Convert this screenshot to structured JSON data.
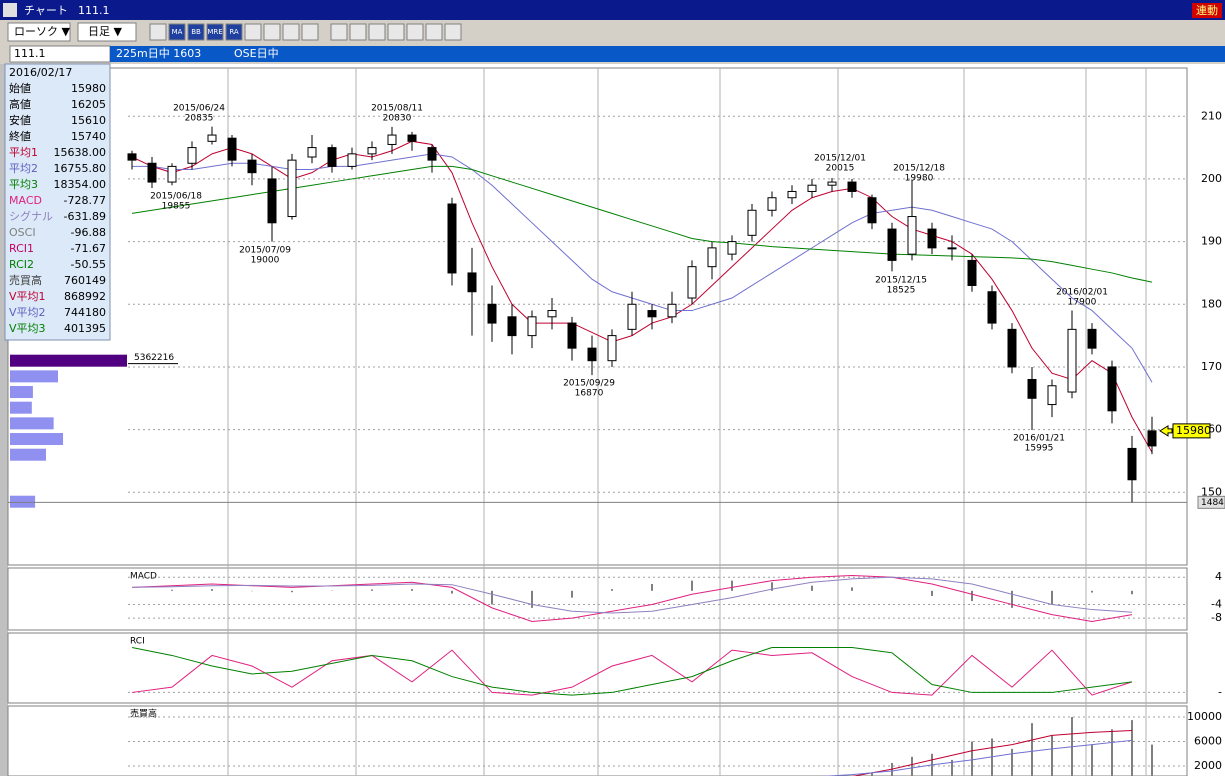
{
  "window": {
    "title": "チャート",
    "code": "111.1",
    "sync": "連動"
  },
  "toolbar": {
    "chart_type": "ローソク ▼",
    "period": "日足 ▼",
    "icons": [
      "MA",
      "BB",
      "MRE",
      "RA"
    ]
  },
  "tabs": [
    "111.1",
    "225m日中 1603",
    "OSE日中"
  ],
  "info": {
    "date": "2016/02/17",
    "rows": [
      {
        "label": "始値",
        "value": "15980",
        "color": "#000000"
      },
      {
        "label": "高値",
        "value": "16205",
        "color": "#000000"
      },
      {
        "label": "安値",
        "value": "15610",
        "color": "#000000"
      },
      {
        "label": "終値",
        "value": "15740",
        "color": "#000000"
      },
      {
        "label": "平均1",
        "value": "15638.00",
        "color": "#c00030"
      },
      {
        "label": "平均2",
        "value": "16755.80",
        "color": "#6060c0"
      },
      {
        "label": "平均3",
        "value": "18354.00",
        "color": "#008000"
      },
      {
        "label": "MACD",
        "value": "-728.77",
        "color": "#e0207f"
      },
      {
        "label": "シグナル",
        "value": "-631.89",
        "color": "#9080c0"
      },
      {
        "label": "OSCI",
        "value": "-96.88",
        "color": "#808080"
      },
      {
        "label": "RCI1",
        "value": "-71.67",
        "color": "#c00060"
      },
      {
        "label": "RCI2",
        "value": "-50.55",
        "color": "#008000"
      },
      {
        "label": "売買高",
        "value": "760149",
        "color": "#404040"
      },
      {
        "label": "V平均1",
        "value": "868992",
        "color": "#c00030"
      },
      {
        "label": "V平均2",
        "value": "744180",
        "color": "#6060c0"
      },
      {
        "label": "V平均3",
        "value": "401395",
        "color": "#008000"
      }
    ]
  },
  "chart_data": [
    {
      "type": "candlestick",
      "up_color": "#ffffff",
      "down_color": "#000000",
      "candles": [
        [
          20400,
          20450,
          20150,
          20300
        ],
        [
          20250,
          20350,
          19855,
          19950
        ],
        [
          19950,
          20250,
          19900,
          20200
        ],
        [
          20250,
          20600,
          20150,
          20500
        ],
        [
          20600,
          20835,
          20550,
          20700
        ],
        [
          20650,
          20700,
          20200,
          20300
        ],
        [
          20300,
          20400,
          19900,
          20100
        ],
        [
          20000,
          20200,
          19000,
          19300
        ],
        [
          19400,
          20400,
          19350,
          20300
        ],
        [
          20350,
          20700,
          20250,
          20500
        ],
        [
          20500,
          20550,
          20100,
          20200
        ],
        [
          20200,
          20500,
          20150,
          20400
        ],
        [
          20400,
          20600,
          20300,
          20500
        ],
        [
          20550,
          20830,
          20400,
          20700
        ],
        [
          20700,
          20750,
          20450,
          20600
        ],
        [
          20500,
          20550,
          20100,
          20300
        ],
        [
          19600,
          19700,
          18300,
          18500
        ],
        [
          18500,
          18900,
          17500,
          18200
        ],
        [
          18000,
          18300,
          17400,
          17700
        ],
        [
          17800,
          18000,
          17200,
          17500
        ],
        [
          17500,
          17900,
          17300,
          17800
        ],
        [
          17800,
          18100,
          17600,
          17900
        ],
        [
          17700,
          17800,
          17100,
          17300
        ],
        [
          17300,
          17500,
          16870,
          17100
        ],
        [
          17100,
          17600,
          17000,
          17500
        ],
        [
          17600,
          18200,
          17500,
          18000
        ],
        [
          17900,
          18000,
          17600,
          17800
        ],
        [
          17800,
          18200,
          17700,
          18000
        ],
        [
          18100,
          18700,
          18000,
          18600
        ],
        [
          18600,
          19000,
          18400,
          18900
        ],
        [
          18800,
          19100,
          18700,
          19000
        ],
        [
          19100,
          19600,
          19000,
          19500
        ],
        [
          19500,
          19800,
          19400,
          19700
        ],
        [
          19700,
          19900,
          19600,
          19800
        ],
        [
          19800,
          20000,
          19700,
          19900
        ],
        [
          19900,
          20015,
          19800,
          19950
        ],
        [
          19950,
          20000,
          19700,
          19800
        ],
        [
          19700,
          19750,
          19200,
          19300
        ],
        [
          19200,
          19300,
          18525,
          18700
        ],
        [
          18800,
          19980,
          18700,
          19400
        ],
        [
          19200,
          19300,
          18800,
          18900
        ],
        [
          18900,
          19100,
          18700,
          18900
        ],
        [
          18700,
          18800,
          18200,
          18300
        ],
        [
          18200,
          18300,
          17600,
          17700
        ],
        [
          17600,
          17700,
          16900,
          17000
        ],
        [
          16800,
          17000,
          15995,
          16500
        ],
        [
          16400,
          16800,
          16200,
          16700
        ],
        [
          16600,
          17900,
          16500,
          17600
        ],
        [
          17600,
          17700,
          17200,
          17300
        ],
        [
          17000,
          17100,
          16100,
          16300
        ],
        [
          15700,
          15900,
          14840,
          15200
        ],
        [
          15980,
          16205,
          15610,
          15740
        ]
      ],
      "series": [
        {
          "color": "#c00030",
          "values": [
            20350,
            20200,
            20100,
            20200,
            20400,
            20500,
            20400,
            20200,
            20000,
            20100,
            20300,
            20400,
            20350,
            20450,
            20600,
            20550,
            20100,
            19300,
            18600,
            18000,
            17700,
            17700,
            17700,
            17550,
            17400,
            17500,
            17700,
            17800,
            18000,
            18300,
            18600,
            18900,
            19200,
            19500,
            19700,
            19800,
            19850,
            19700,
            19400,
            19200,
            19100,
            19000,
            18800,
            18400,
            17900,
            17300,
            16900,
            16800,
            17100,
            16900,
            16200,
            15638
          ]
        },
        {
          "color": "#7070d0",
          "values": [
            20200,
            20200,
            20150,
            20150,
            20200,
            20250,
            20250,
            20200,
            20150,
            20150,
            20200,
            20200,
            20250,
            20300,
            20350,
            20400,
            20350,
            20150,
            19900,
            19600,
            19300,
            19000,
            18700,
            18400,
            18200,
            18100,
            18000,
            17900,
            17900,
            18000,
            18100,
            18300,
            18500,
            18700,
            18900,
            19100,
            19300,
            19450,
            19500,
            19550,
            19500,
            19400,
            19300,
            19200,
            19000,
            18700,
            18400,
            18100,
            17900,
            17600,
            17300,
            16756
          ]
        },
        {
          "color": "#008000",
          "values": [
            19450,
            19500,
            19550,
            19600,
            19650,
            19700,
            19750,
            19800,
            19850,
            19900,
            19950,
            20000,
            20050,
            20100,
            20150,
            20200,
            20200,
            20150,
            20050,
            19950,
            19850,
            19750,
            19650,
            19550,
            19450,
            19350,
            19250,
            19150,
            19050,
            19000,
            18980,
            18950,
            18920,
            18900,
            18880,
            18860,
            18840,
            18820,
            18800,
            18790,
            18780,
            18770,
            18760,
            18750,
            18740,
            18720,
            18680,
            18620,
            18560,
            18500,
            18420,
            18354
          ]
        }
      ],
      "ylim": [
        13840,
        21770
      ],
      "yticks": [
        {
          "value": 21000,
          "label": "210"
        },
        {
          "value": 20000,
          "label": "200"
        },
        {
          "value": 19000,
          "label": "190"
        },
        {
          "value": 18000,
          "label": "180"
        },
        {
          "value": 17000,
          "label": "170"
        },
        {
          "value": 16000,
          "label": "160"
        },
        {
          "value": 15000,
          "label": "150"
        }
      ],
      "grid": true,
      "annotations": [
        {
          "date": "2015/06/24",
          "price": "20835"
        },
        {
          "date": "2015/06/18",
          "price": "19855"
        },
        {
          "date": "2015/07/09",
          "price": "19000"
        },
        {
          "date": "2015/08/11",
          "price": "20830"
        },
        {
          "date": "2015/09/29",
          "price": "16870"
        },
        {
          "date": "2015/12/01",
          "price": "20015"
        },
        {
          "date": "2015/12/18",
          "price": "19980"
        },
        {
          "date": "2015/12/15",
          "price": "18525"
        },
        {
          "date": "2016/02/01",
          "price": "17900"
        },
        {
          "date": "2016/01/21",
          "price": "15995"
        }
      ],
      "price_tag": 15980,
      "low_line": {
        "value": 14840,
        "label": "1484"
      },
      "volume_profile": {
        "prices": [
          17100,
          16850,
          16600,
          16350,
          16100,
          15850,
          15600,
          14850
        ],
        "values": [
          5362216,
          2200000,
          1050000,
          1000000,
          2000000,
          2430000,
          1650000,
          1150000
        ],
        "colors": [
          "#500080",
          "#9090f0",
          "#9090f0",
          "#9090f0",
          "#9090f0",
          "#9090f0",
          "#9090f0",
          "#9090f0"
        ]
      }
    },
    {
      "type": "line",
      "title": "MACD",
      "ylim": [
        -11.5,
        6.7
      ],
      "yticks": [
        4,
        -4,
        -8
      ],
      "bars": {
        "color": "#808080",
        "values": [
          0,
          0.3,
          0.5,
          -0.1,
          -0.4,
          0.1,
          0.4,
          0.5,
          -0.8,
          -4,
          -5,
          -2,
          0.5,
          2,
          3,
          3,
          2.5,
          1.5,
          1,
          0,
          -1.5,
          -3,
          -5,
          -4,
          -0.5,
          -1
        ]
      },
      "series": [
        {
          "color": "#e0207f",
          "values": [
            1,
            1.5,
            2,
            1.5,
            1,
            1.5,
            2,
            2.5,
            1,
            -5,
            -9,
            -8,
            -6,
            -4,
            -1,
            1,
            3,
            4,
            4.5,
            4,
            2,
            -1,
            -4,
            -7,
            -9,
            -7
          ]
        },
        {
          "color": "#9080c0",
          "values": [
            1,
            1.2,
            1.5,
            1.6,
            1.4,
            1.4,
            1.6,
            2,
            1.8,
            -1,
            -4,
            -6,
            -6.5,
            -6,
            -4,
            -2,
            0.5,
            2.5,
            3.5,
            4,
            3.5,
            2,
            -1,
            -4,
            -5.5,
            -6.3
          ]
        }
      ]
    },
    {
      "type": "line",
      "title": "RCI",
      "ylim": [
        -120,
        145
      ],
      "yticks": [
        {
          "value": -80,
          "label": "-"
        }
      ],
      "series": [
        {
          "color": "#e0207f",
          "values": [
            -80,
            -60,
            60,
            20,
            -60,
            40,
            60,
            -40,
            80,
            -80,
            -90,
            -60,
            20,
            60,
            -40,
            80,
            60,
            70,
            -20,
            -80,
            -90,
            60,
            -60,
            80,
            -90,
            -40
          ]
        },
        {
          "color": "#008000",
          "values": [
            90,
            60,
            20,
            -10,
            0,
            30,
            60,
            40,
            -20,
            -60,
            -80,
            -90,
            -80,
            -50,
            -20,
            40,
            90,
            90,
            90,
            70,
            -50,
            -80,
            -80,
            -80,
            -60,
            -40
          ]
        }
      ]
    },
    {
      "type": "bar",
      "title": "売買高",
      "ylim": [
        375,
        11800
      ],
      "yticks": [
        10000,
        6000,
        2000
      ],
      "color": "#808080",
      "values": [
        200,
        250,
        200,
        300,
        250,
        200,
        300,
        350,
        250,
        200,
        200,
        250,
        300,
        250,
        200,
        250,
        400,
        350,
        300,
        250,
        300,
        250,
        300,
        350,
        300,
        250,
        200,
        250,
        300,
        250,
        200,
        250,
        300,
        250,
        300,
        350,
        300,
        800,
        2500,
        3500,
        4000,
        3000,
        6000,
        6500,
        4800,
        9000,
        7000,
        10000,
        5500,
        8000,
        9500,
        5500
      ],
      "series": [
        {
          "color": "#c00030",
          "values": [
            200,
            200,
            200,
            200,
            200,
            200,
            200,
            200,
            200,
            200,
            200,
            200,
            200,
            200,
            200,
            200,
            200,
            200,
            300,
            1500,
            3000,
            4500,
            5500,
            7000,
            7500,
            7800
          ]
        },
        {
          "color": "#7070d0",
          "values": [
            200,
            200,
            200,
            200,
            200,
            200,
            200,
            200,
            200,
            200,
            200,
            200,
            200,
            200,
            200,
            200,
            200,
            200,
            600,
            1200,
            2200,
            3000,
            4000,
            4800,
            5500,
            6200
          ]
        }
      ]
    }
  ]
}
